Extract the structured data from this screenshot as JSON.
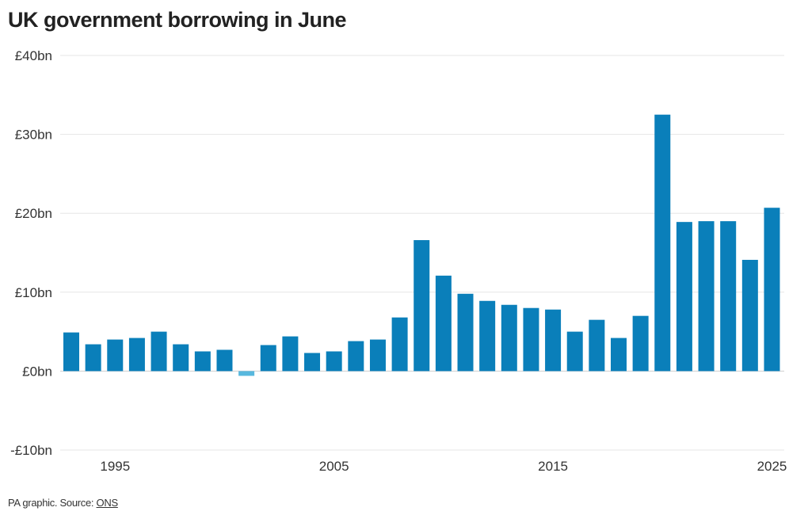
{
  "title": "UK government borrowing in June",
  "source": {
    "prefix": "PA graphic. Source: ",
    "link_text": "ONS"
  },
  "colors": {
    "positive": "#0a7fba",
    "negative": "#58b8de",
    "grid": "#e6e6e6",
    "zero_line": "#cfcfcf"
  },
  "chart_data": {
    "type": "bar",
    "title": "UK government borrowing in June",
    "xlabel": "",
    "ylabel": "",
    "ylim": [
      -10,
      40
    ],
    "y_ticks": [
      {
        "value": 40,
        "label": "£40bn"
      },
      {
        "value": 30,
        "label": "£30bn"
      },
      {
        "value": 20,
        "label": "£20bn"
      },
      {
        "value": 10,
        "label": "£10bn"
      },
      {
        "value": 0,
        "label": "£0bn"
      },
      {
        "value": -10,
        "label": "-£10bn"
      }
    ],
    "x_ticks": [
      "1995",
      "2005",
      "2015",
      "2025"
    ],
    "grid": true,
    "categories": [
      1993,
      1994,
      1995,
      1996,
      1997,
      1998,
      1999,
      2000,
      2001,
      2002,
      2003,
      2004,
      2005,
      2006,
      2007,
      2008,
      2009,
      2010,
      2011,
      2012,
      2013,
      2014,
      2015,
      2016,
      2017,
      2018,
      2019,
      2020,
      2021,
      2022,
      2023,
      2024,
      2025
    ],
    "values": [
      4.9,
      3.4,
      4.0,
      4.2,
      5.0,
      3.4,
      2.5,
      2.7,
      -0.6,
      3.3,
      4.4,
      2.3,
      2.5,
      3.8,
      4.0,
      6.8,
      16.6,
      12.1,
      9.8,
      8.9,
      8.4,
      8.0,
      7.8,
      5.0,
      6.5,
      4.2,
      7.0,
      32.5,
      18.9,
      19.0,
      19.0,
      14.1,
      20.7
    ]
  }
}
